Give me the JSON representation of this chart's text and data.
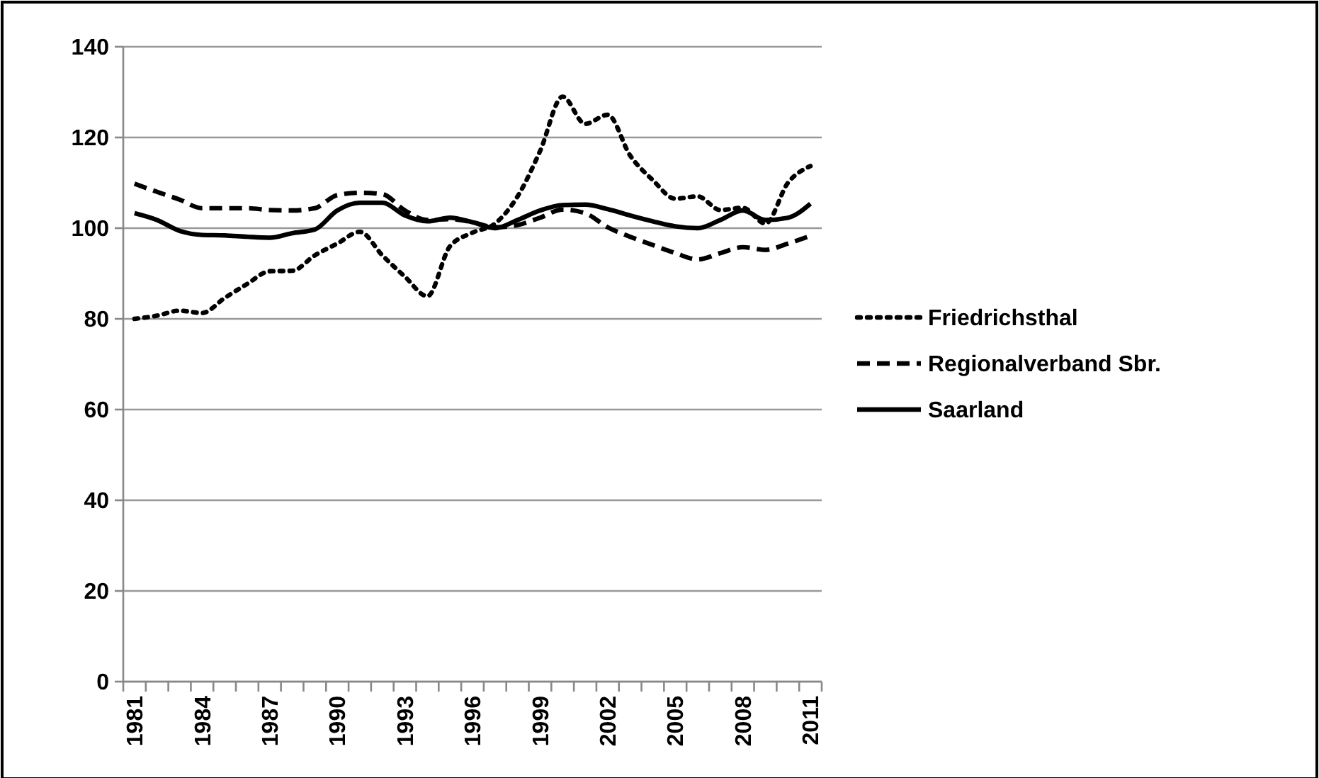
{
  "chart_data": {
    "type": "line",
    "categories": [
      "1981",
      null,
      null,
      "1984",
      null,
      null,
      "1987",
      null,
      null,
      "1990",
      null,
      null,
      "1993",
      null,
      null,
      "1996",
      null,
      null,
      "1999",
      null,
      null,
      "2002",
      null,
      null,
      "2005",
      null,
      null,
      "2008",
      null,
      null,
      "2011"
    ],
    "ylim": [
      0,
      140
    ],
    "yticks": [
      0,
      20,
      40,
      60,
      80,
      100,
      120,
      140
    ],
    "grid": "y",
    "legend": "right",
    "marker": "none",
    "series": [
      {
        "name": "Friedrichsthal",
        "color": "#000000",
        "line_style": "dotted",
        "values": [
          80,
          80.7,
          81.8,
          81.3,
          84.6,
          87.7,
          90.5,
          90.6,
          94,
          96.6,
          99.2,
          94,
          89.3,
          85,
          96,
          99,
          101,
          107,
          117,
          129,
          123,
          125,
          116,
          110.6,
          106.5,
          107,
          104,
          104.5,
          101,
          110,
          113.7
        ]
      },
      {
        "name": "Regionalverband Sbr.",
        "color": "#000000",
        "line_style": "dashed",
        "values": [
          109.8,
          108,
          106.3,
          104.4,
          104.4,
          104.4,
          104,
          103.9,
          104.4,
          107.3,
          107.8,
          107.5,
          103.9,
          101.8,
          102,
          101.3,
          100.2,
          100.7,
          102.3,
          104.1,
          103.3,
          100.2,
          98.1,
          96.3,
          94.5,
          93.1,
          94.5,
          95.8,
          95.2,
          96.6,
          98.3
        ]
      },
      {
        "name": "Saarland",
        "color": "#000000",
        "line_style": "solid",
        "values": [
          103.3,
          101.8,
          99.4,
          98.5,
          98.4,
          98.1,
          97.9,
          98.9,
          99.7,
          103.9,
          105.6,
          105.6,
          102.8,
          101.5,
          102.3,
          101.3,
          100,
          101.8,
          103.9,
          105.1,
          105.2,
          104.2,
          102.8,
          101.5,
          100.4,
          100,
          101.8,
          103.9,
          101.8,
          102.3,
          105.4
        ]
      }
    ]
  }
}
